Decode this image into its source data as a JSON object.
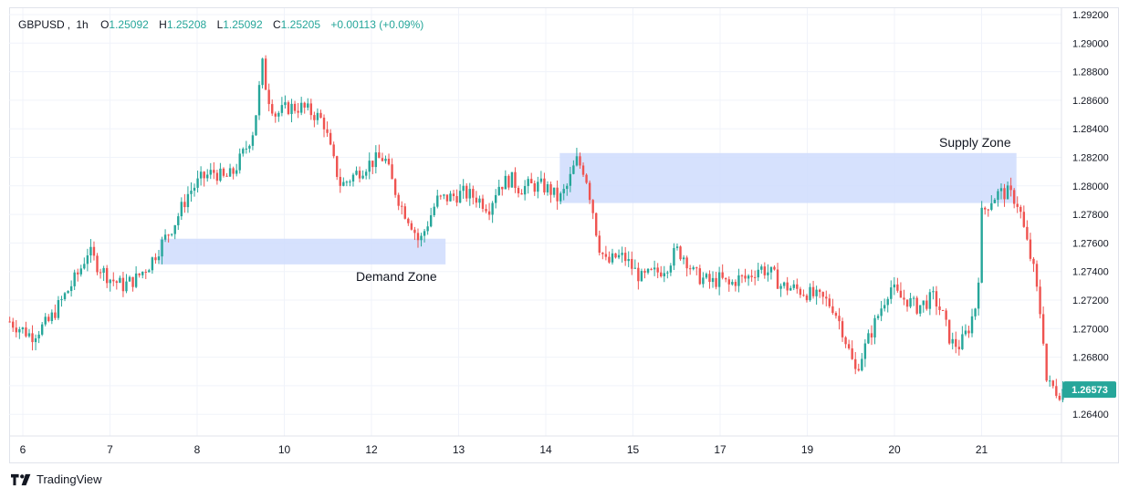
{
  "legend": {
    "symbol": "GBPUSD",
    "interval": "1h",
    "open_label": "O",
    "open": "1.25092",
    "high_label": "H",
    "high": "1.25208",
    "low_label": "L",
    "low": "1.25092",
    "close_label": "C",
    "close": "1.25205",
    "change": "+0.00113 (+0.09%)"
  },
  "zones": {
    "demand_label": "Demand Zone",
    "supply_label": "Supply Zone"
  },
  "price_badge": "1.26573",
  "brand": {
    "name": "TradingView",
    "logo_icon": "tradingview-logo-icon"
  },
  "colors": {
    "up": "#26a69a",
    "down": "#ef5350",
    "zone_fill": "#cfdcfd",
    "badge": "#26a69a",
    "grid": "#f0f3fa",
    "axis_text": "#131722"
  },
  "chart_data": {
    "type": "candlestick",
    "symbol": "GBPUSD",
    "interval": "1h",
    "ylim": [
      1.2625,
      1.2925
    ],
    "y_ticks": [
      "1.29200",
      "1.29000",
      "1.28800",
      "1.28600",
      "1.28400",
      "1.28200",
      "1.28000",
      "1.27800",
      "1.27600",
      "1.27400",
      "1.27200",
      "1.27000",
      "1.26800",
      "1.26600",
      "1.26400"
    ],
    "x_ticks": [
      "6",
      "7",
      "8",
      "10",
      "12",
      "13",
      "14",
      "15",
      "17",
      "19",
      "20",
      "21"
    ],
    "x_tick_positions": [
      0,
      1,
      2,
      3,
      4,
      5,
      6,
      7,
      8,
      9,
      10,
      11
    ],
    "last_price": 1.26573,
    "zones": [
      {
        "name": "Demand Zone",
        "from": 1.2745,
        "to": 1.2763,
        "x_start": 1.57,
        "x_end": 4.85
      },
      {
        "name": "Supply Zone",
        "from": 1.2788,
        "to": 1.2823,
        "x_start": 6.16,
        "x_end": 11.4
      }
    ],
    "close_path": [
      [
        -0.15,
        1.2705
      ],
      [
        0.1,
        1.2695
      ],
      [
        0.3,
        1.2705
      ],
      [
        0.5,
        1.2725
      ],
      [
        0.65,
        1.274
      ],
      [
        0.75,
        1.2755
      ],
      [
        0.85,
        1.2745
      ],
      [
        1.0,
        1.2735
      ],
      [
        1.15,
        1.273
      ],
      [
        1.3,
        1.2735
      ],
      [
        1.45,
        1.2745
      ],
      [
        1.6,
        1.276
      ],
      [
        1.75,
        1.2775
      ],
      [
        1.9,
        1.2795
      ],
      [
        2.05,
        1.2805
      ],
      [
        2.2,
        1.281
      ],
      [
        2.3,
        1.2805
      ],
      [
        2.4,
        1.2808
      ],
      [
        2.55,
        1.2825
      ],
      [
        2.65,
        1.284
      ],
      [
        2.75,
        1.2885
      ],
      [
        2.8,
        1.2865
      ],
      [
        2.9,
        1.285
      ],
      [
        3.05,
        1.2855
      ],
      [
        3.2,
        1.2855
      ],
      [
        3.35,
        1.285
      ],
      [
        3.45,
        1.2845
      ],
      [
        3.55,
        1.282
      ],
      [
        3.65,
        1.28
      ],
      [
        3.75,
        1.2805
      ],
      [
        3.85,
        1.281
      ],
      [
        3.95,
        1.2815
      ],
      [
        4.05,
        1.2818
      ],
      [
        4.15,
        1.282
      ],
      [
        4.25,
        1.28
      ],
      [
        4.35,
        1.2785
      ],
      [
        4.45,
        1.2775
      ],
      [
        4.55,
        1.276
      ],
      [
        4.65,
        1.2775
      ],
      [
        4.75,
        1.279
      ],
      [
        4.9,
        1.2792
      ],
      [
        5.05,
        1.2795
      ],
      [
        5.2,
        1.2792
      ],
      [
        5.35,
        1.2785
      ],
      [
        5.45,
        1.28
      ],
      [
        5.6,
        1.2805
      ],
      [
        5.7,
        1.2798
      ],
      [
        5.8,
        1.28
      ],
      [
        5.95,
        1.28
      ],
      [
        6.05,
        1.2797
      ],
      [
        6.15,
        1.279
      ],
      [
        6.25,
        1.28
      ],
      [
        6.35,
        1.2818
      ],
      [
        6.45,
        1.281
      ],
      [
        6.55,
        1.278
      ],
      [
        6.6,
        1.276
      ],
      [
        6.7,
        1.2745
      ],
      [
        6.8,
        1.275
      ],
      [
        6.9,
        1.275
      ],
      [
        7.0,
        1.2742
      ],
      [
        7.1,
        1.2735
      ],
      [
        7.2,
        1.2738
      ],
      [
        7.3,
        1.274
      ],
      [
        7.4,
        1.2745
      ],
      [
        7.5,
        1.2755
      ],
      [
        7.6,
        1.275
      ],
      [
        7.7,
        1.2738
      ],
      [
        7.8,
        1.2735
      ],
      [
        7.9,
        1.2732
      ],
      [
        8.0,
        1.2735
      ],
      [
        8.1,
        1.273
      ],
      [
        8.2,
        1.2735
      ],
      [
        8.3,
        1.2735
      ],
      [
        8.45,
        1.2743
      ],
      [
        8.6,
        1.2738
      ],
      [
        8.7,
        1.273
      ],
      [
        8.85,
        1.2728
      ],
      [
        9.0,
        1.2725
      ],
      [
        9.1,
        1.2722
      ],
      [
        9.2,
        1.272
      ],
      [
        9.3,
        1.2715
      ],
      [
        9.4,
        1.27
      ],
      [
        9.5,
        1.268
      ],
      [
        9.55,
        1.267
      ],
      [
        9.65,
        1.2685
      ],
      [
        9.75,
        1.27
      ],
      [
        9.85,
        1.2715
      ],
      [
        9.95,
        1.273
      ],
      [
        10.05,
        1.2722
      ],
      [
        10.15,
        1.272
      ],
      [
        10.25,
        1.2715
      ],
      [
        10.35,
        1.2718
      ],
      [
        10.45,
        1.2722
      ],
      [
        10.55,
        1.271
      ],
      [
        10.65,
        1.269
      ],
      [
        10.75,
        1.2688
      ],
      [
        10.85,
        1.27
      ],
      [
        10.95,
        1.272
      ],
      [
        11.0,
        1.278
      ],
      [
        11.1,
        1.279
      ],
      [
        11.2,
        1.2795
      ],
      [
        11.3,
        1.2795
      ],
      [
        11.4,
        1.279
      ],
      [
        11.45,
        1.278
      ],
      [
        11.5,
        1.2765
      ],
      [
        11.6,
        1.274
      ],
      [
        11.7,
        1.27
      ],
      [
        11.75,
        1.266
      ],
      [
        11.8,
        1.266
      ],
      [
        11.88,
        1.2655
      ],
      [
        11.96,
        1.26573
      ]
    ]
  }
}
